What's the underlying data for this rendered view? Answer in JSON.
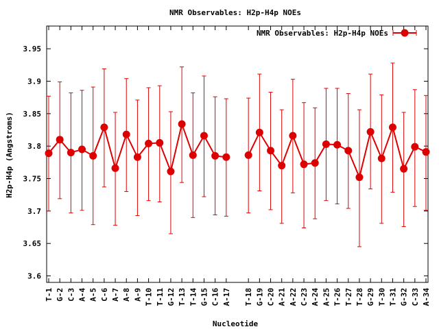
{
  "chart_data": {
    "type": "line",
    "title": "NMR Observables: H2p-H4p NOEs",
    "xlabel": "Nucleotide",
    "ylabel": "H2p-H4p (Angstroms)",
    "ylim": [
      3.59,
      3.985
    ],
    "yticks": [
      3.6,
      3.65,
      3.7,
      3.75,
      3.8,
      3.85,
      3.9,
      3.95
    ],
    "legend_position": "top-right",
    "color": "#dd0000",
    "grid": false,
    "categories": [
      "T-1",
      "G-2",
      "C-3",
      "A-4",
      "A-5",
      "C-6",
      "A-7",
      "A-8",
      "A-9",
      "T-10",
      "T-11",
      "G-12",
      "T-13",
      "T-14",
      "G-15",
      "C-16",
      "A-17",
      "",
      "T-18",
      "G-19",
      "C-20",
      "A-21",
      "A-22",
      "C-23",
      "A-24",
      "A-25",
      "T-26",
      "T-27",
      "T-28",
      "G-29",
      "T-30",
      "T-31",
      "G-32",
      "C-33",
      "A-34"
    ],
    "series": [
      {
        "name": "NMR Observables: H2p-H4p NOEs",
        "values": [
          3.789,
          3.81,
          3.79,
          3.795,
          3.785,
          3.829,
          3.766,
          3.818,
          3.783,
          3.804,
          3.805,
          3.761,
          3.834,
          3.786,
          3.816,
          3.785,
          3.783,
          null,
          3.786,
          3.821,
          3.793,
          3.77,
          3.816,
          3.772,
          3.774,
          3.803,
          3.802,
          3.793,
          3.752,
          3.822,
          3.781,
          3.829,
          3.765,
          3.799,
          3.791
        ],
        "err_low": [
          3.7,
          3.719,
          3.697,
          3.701,
          3.679,
          3.737,
          3.678,
          3.73,
          3.693,
          3.716,
          3.714,
          3.665,
          3.744,
          3.69,
          3.722,
          3.694,
          3.692,
          null,
          3.697,
          3.731,
          3.702,
          3.681,
          3.728,
          3.674,
          3.688,
          3.716,
          3.711,
          3.704,
          3.645,
          3.734,
          3.681,
          3.729,
          3.676,
          3.707,
          3.701
        ],
        "err_high": [
          3.877,
          3.899,
          3.882,
          3.886,
          3.891,
          3.919,
          3.852,
          3.904,
          3.871,
          3.89,
          3.893,
          3.853,
          3.922,
          3.882,
          3.908,
          3.876,
          3.873,
          null,
          3.874,
          3.911,
          3.883,
          3.856,
          3.903,
          3.867,
          3.859,
          3.889,
          3.889,
          3.881,
          3.856,
          3.911,
          3.879,
          3.928,
          3.852,
          3.887,
          3.878
        ]
      }
    ]
  }
}
